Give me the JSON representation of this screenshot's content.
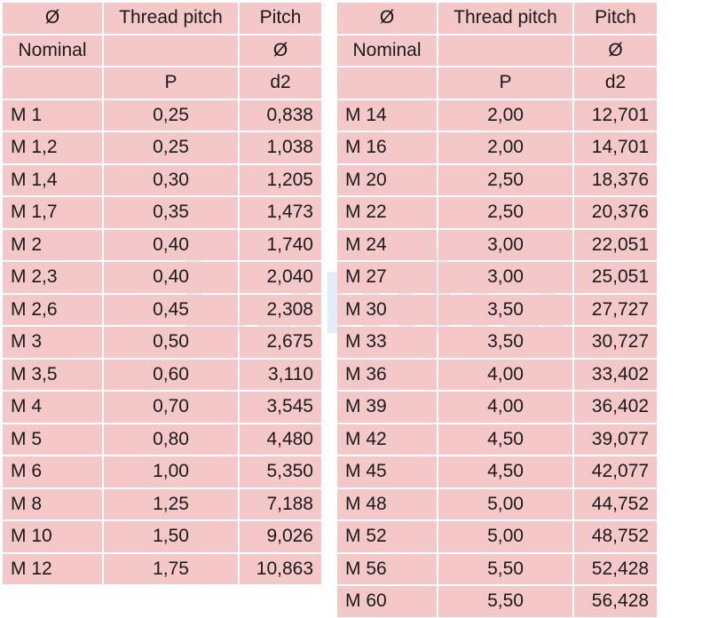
{
  "tables": [
    {
      "header": [
        [
          "Ø",
          "Thread pitch",
          "Pitch"
        ],
        [
          "Nominal",
          null,
          "Ø"
        ],
        [
          null,
          "P",
          "d2"
        ]
      ],
      "rows": [
        [
          "M 1",
          "0,25",
          "0,838"
        ],
        [
          "M 1,2",
          "0,25",
          "1,038"
        ],
        [
          "M 1,4",
          "0,30",
          "1,205"
        ],
        [
          "M 1,7",
          "0,35",
          "1,473"
        ],
        [
          "M 2",
          "0,40",
          "1,740"
        ],
        [
          "M 2,3",
          "0,40",
          "2,040"
        ],
        [
          "M 2,6",
          "0,45",
          "2,308"
        ],
        [
          "M 3",
          "0,50",
          "2,675"
        ],
        [
          "M 3,5",
          "0,60",
          "3,110"
        ],
        [
          "M 4",
          "0,70",
          "3,545"
        ],
        [
          "M 5",
          "0,80",
          "4,480"
        ],
        [
          "M 6",
          "1,00",
          "5,350"
        ],
        [
          "M 8",
          "1,25",
          "7,188"
        ],
        [
          "M 10",
          "1,50",
          "9,026"
        ],
        [
          "M 12",
          "1,75",
          "10,863"
        ]
      ]
    },
    {
      "header": [
        [
          "Ø",
          "Thread pitch",
          "Pitch"
        ],
        [
          "Nominal",
          null,
          "Ø"
        ],
        [
          null,
          "P",
          "d2"
        ]
      ],
      "rows": [
        [
          "M 14",
          "2,00",
          "12,701"
        ],
        [
          "M 16",
          "2,00",
          "14,701"
        ],
        [
          "M 20",
          "2,50",
          "18,376"
        ],
        [
          "M 22",
          "2,50",
          "20,376"
        ],
        [
          "M 24",
          "3,00",
          "22,051"
        ],
        [
          "M 27",
          "3,00",
          "25,051"
        ],
        [
          "M 30",
          "3,50",
          "27,727"
        ],
        [
          "M 33",
          "3,50",
          "30,727"
        ],
        [
          "M 36",
          "4,00",
          "33,402"
        ],
        [
          "M 39",
          "4,00",
          "36,402"
        ],
        [
          "M 42",
          "4,50",
          "39,077"
        ],
        [
          "M 45",
          "4,50",
          "42,077"
        ],
        [
          "M 48",
          "5,00",
          "44,752"
        ],
        [
          "M 52",
          "5,00",
          "48,752"
        ],
        [
          "M 56",
          "5,50",
          "52,428"
        ],
        [
          "M 60",
          "5,50",
          "56,428"
        ]
      ]
    }
  ],
  "watermark": "Lamha"
}
